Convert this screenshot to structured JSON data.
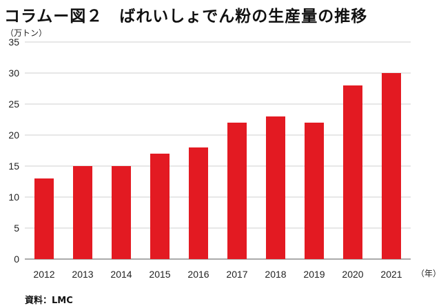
{
  "title": "コラムー図２　ばれいしょでん粉の生産量の推移",
  "source": "資料：LMC",
  "chart_data": {
    "type": "bar",
    "title": "コラムー図２　ばれいしょでん粉の生産量の推移",
    "ylabel": "（万トン）",
    "xlabel": "（年）",
    "categories": [
      "2012",
      "2013",
      "2014",
      "2015",
      "2016",
      "2017",
      "2018",
      "2019",
      "2020",
      "2021"
    ],
    "values": [
      13,
      15,
      15,
      17,
      18,
      22,
      23,
      22,
      28,
      30
    ],
    "yticks": [
      0,
      5,
      10,
      15,
      20,
      25,
      30,
      35
    ],
    "ylim": [
      0,
      35
    ],
    "grid": true,
    "bar_color": "#e31a22"
  }
}
